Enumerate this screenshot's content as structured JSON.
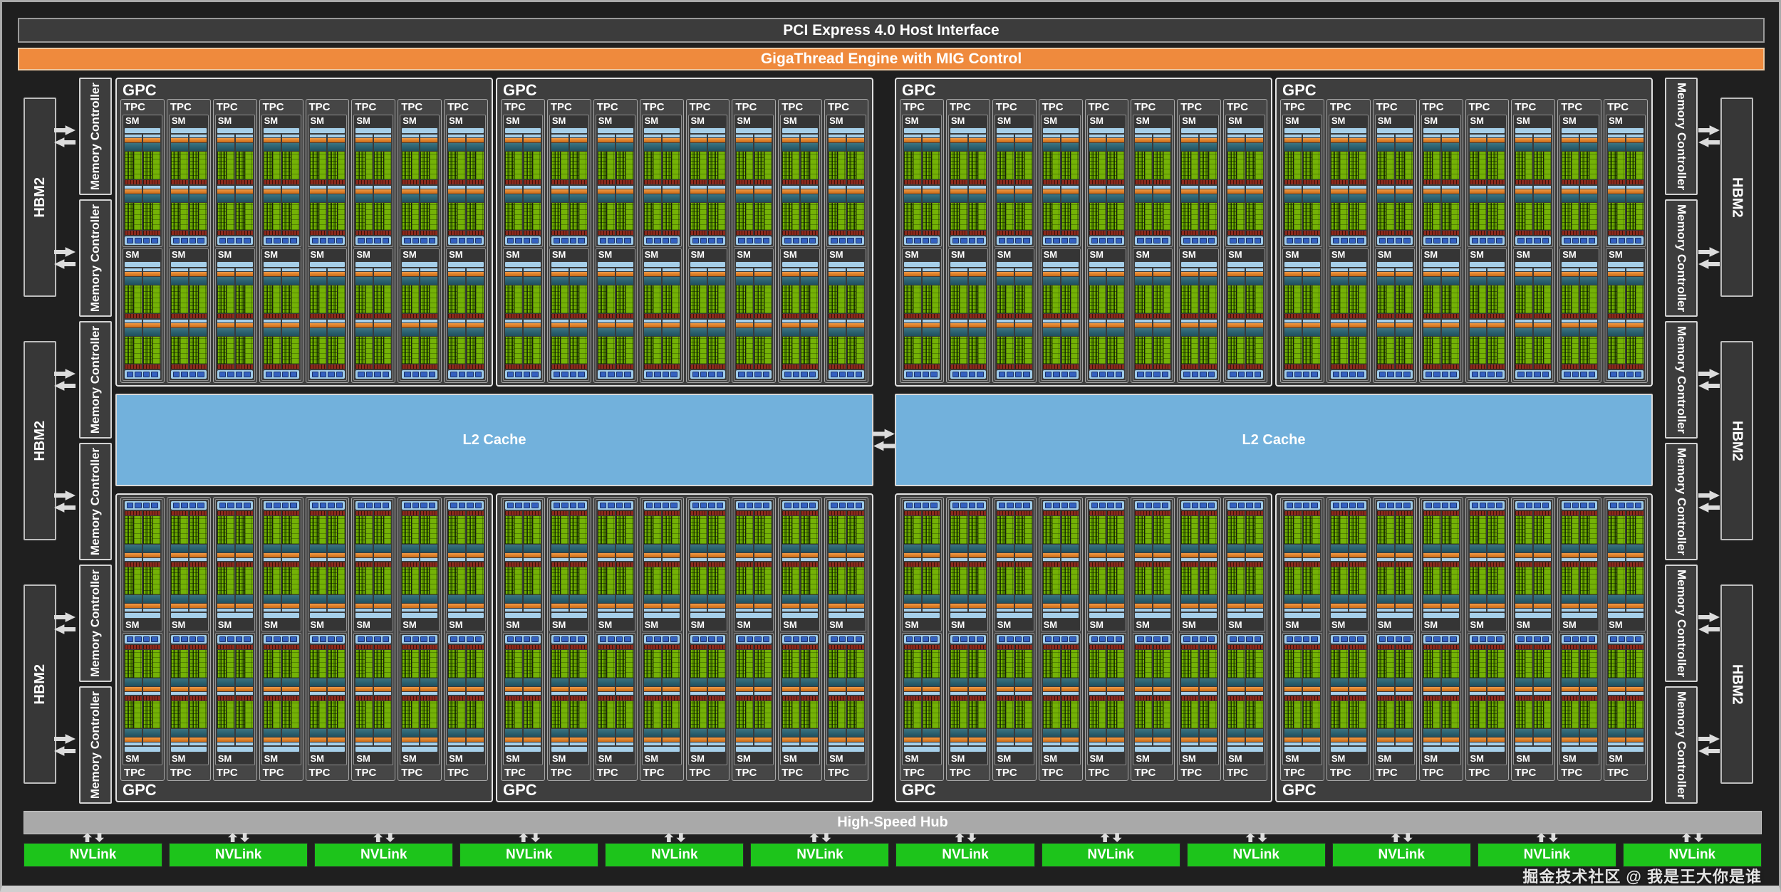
{
  "bars": {
    "pci": "PCI Express 4.0 Host Interface",
    "gigathread": "GigaThread Engine with MIG Control"
  },
  "gpu": {
    "gpc_label": "GPC",
    "tpc_label": "TPC",
    "sm_label": "SM",
    "l2_label": "L2 Cache",
    "hub_label": "High-Speed Hub",
    "nvlink_label": "NVLink",
    "mc_label": "Memory Controller",
    "hbm_label": "HBM2"
  },
  "counts": {
    "gpc_rows": 2,
    "gpc_per_row": 4,
    "tpc_per_gpc": 8,
    "sm_per_tpc": 2,
    "core_rows_per_sm": 2,
    "core_cols_per_row": 2,
    "tex_segments": 4,
    "nvlink": 12,
    "mc_per_side": 6,
    "hbm_per_side": 3
  },
  "colors": {
    "gigathread_orange": "#ef8a3d",
    "l2_blue": "#72b1dc",
    "nvlink_green": "#1dc41b",
    "hub_gray": "#a9a9a9",
    "sm_lightblue_bar": "#a6cfe9",
    "sm_orange_bar": "#e08230",
    "sm_teal_bar": "#2c6575",
    "core_green": "#76b500",
    "tensor_green": "#74b206",
    "sm_red_bar": "#8c2b1e",
    "tex_blue": "#3461c1",
    "arrow_gray": "#dcdcdc"
  },
  "watermark": "掘金技术社区 @ 我是王大你是谁"
}
